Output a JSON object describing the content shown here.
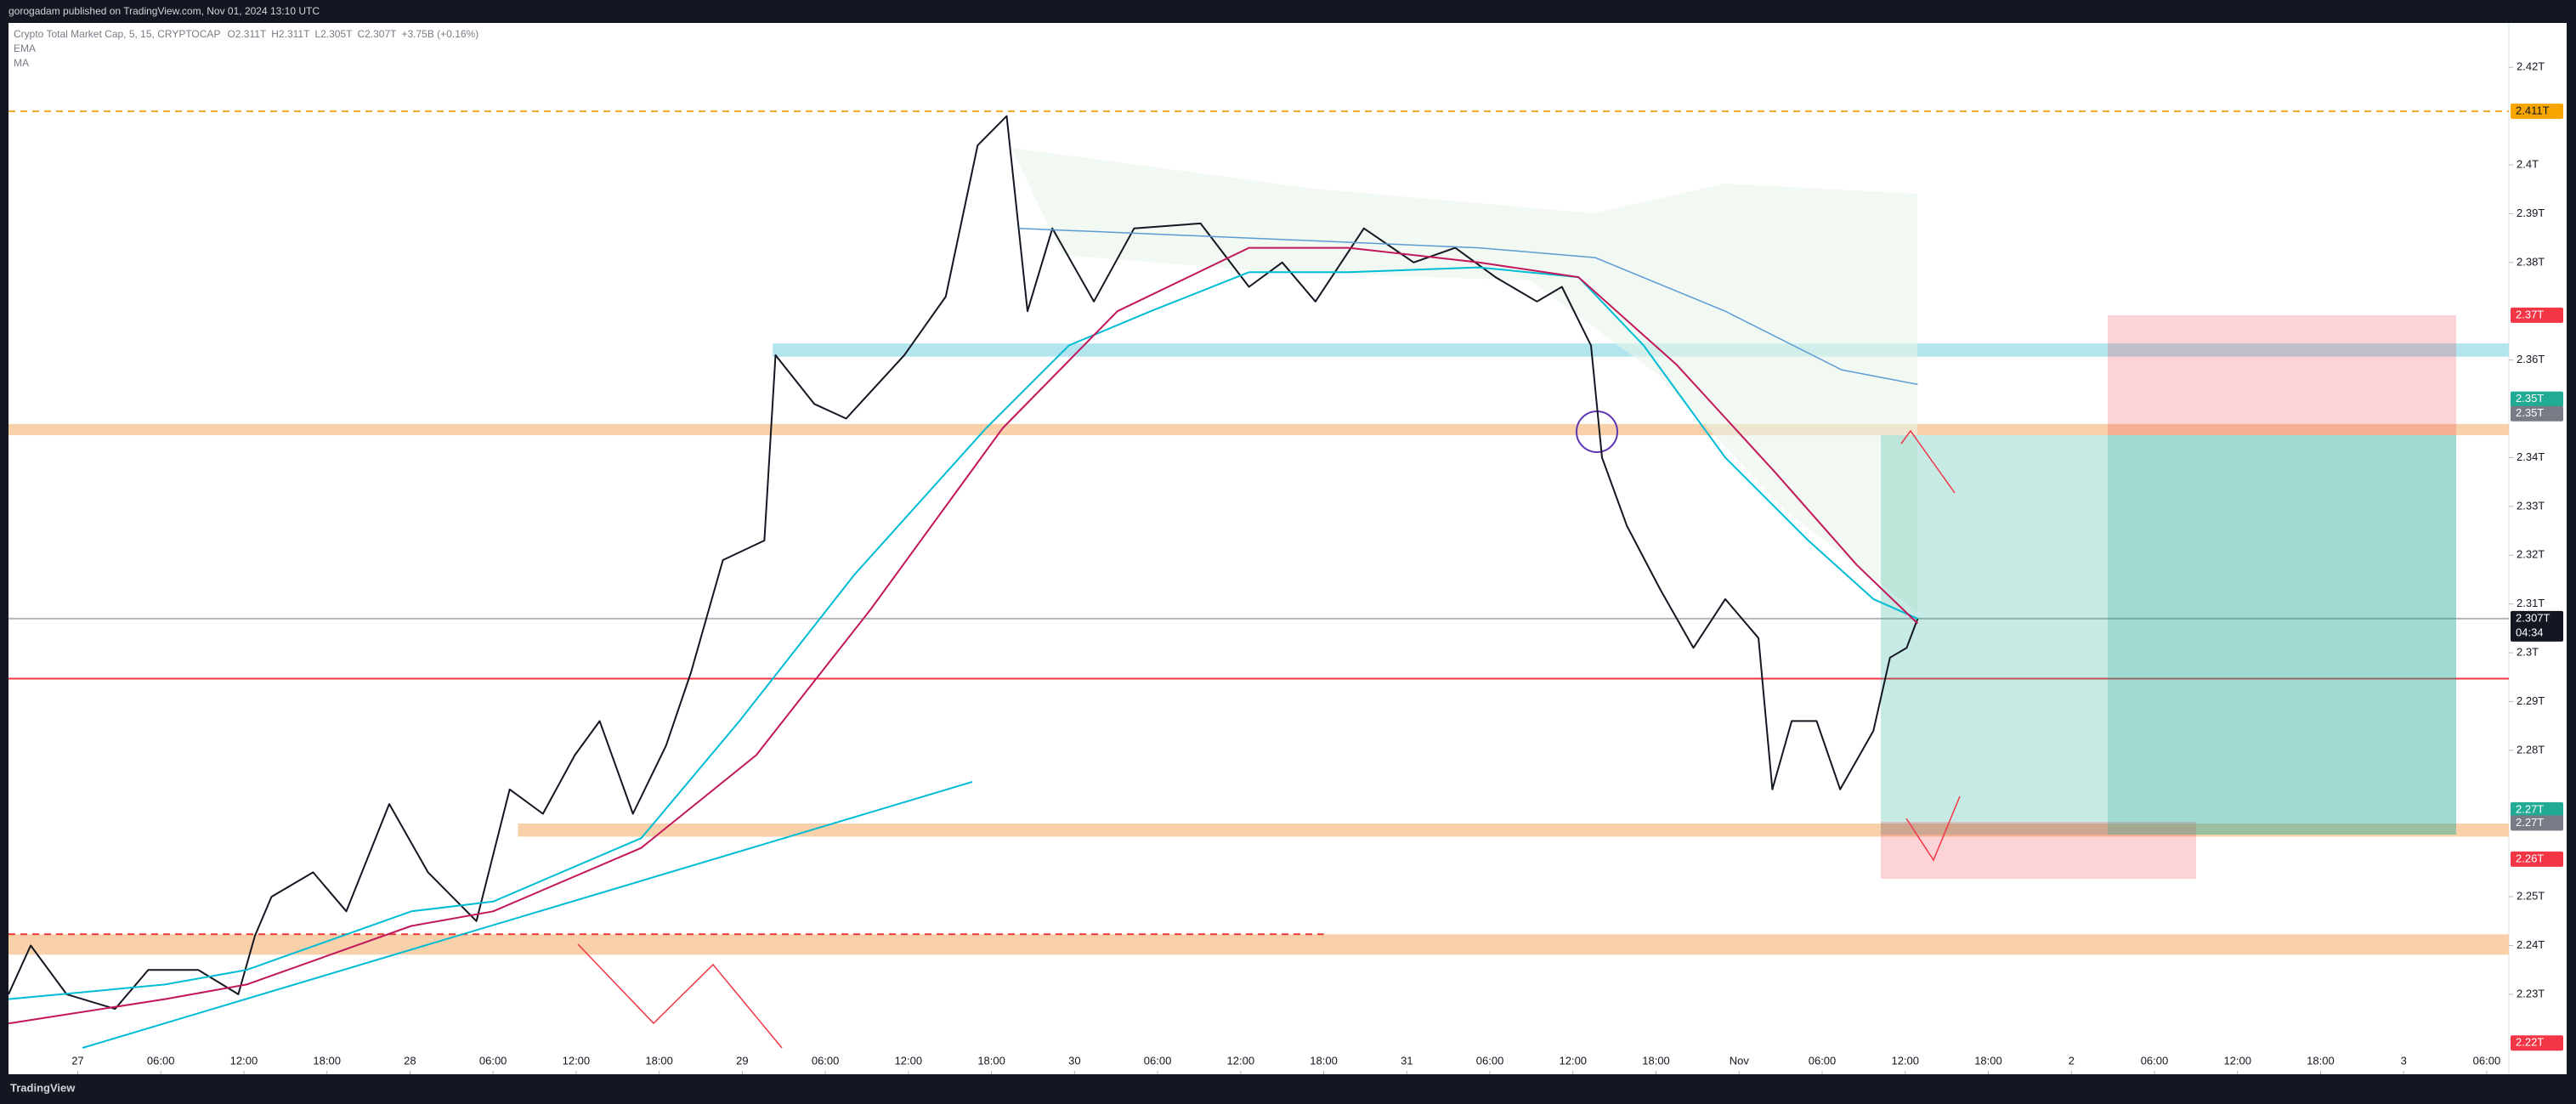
{
  "header": {
    "publisher": "gorogadam published on TradingView.com, Nov 01, 2024 13:10 UTC",
    "footer": "TradingView"
  },
  "chart_data": {
    "type": "line",
    "symbol_info": ", 5, 15, CRYPTOCAP",
    "ohlc_text": [
      "O2.311T",
      "H2.311T",
      "L2.305T",
      "C2.307T",
      "+3.75B (+0.16%)"
    ],
    "xlim": [
      -5.0,
      175.6
    ],
    "ylim": [
      2.2136,
      2.4291
    ],
    "grid": false,
    "xticks": [
      {
        "value": 0,
        "label": "27"
      },
      {
        "value": 6,
        "label": "06:00"
      },
      {
        "value": 12,
        "label": "12:00"
      },
      {
        "value": 18,
        "label": "18:00"
      },
      {
        "value": 24,
        "label": "28"
      },
      {
        "value": 30,
        "label": "06:00"
      },
      {
        "value": 36,
        "label": "12:00"
      },
      {
        "value": 42,
        "label": "18:00"
      },
      {
        "value": 48,
        "label": "29"
      },
      {
        "value": 54,
        "label": "06:00"
      },
      {
        "value": 60,
        "label": "12:00"
      },
      {
        "value": 66,
        "label": "18:00"
      },
      {
        "value": 72,
        "label": "30"
      },
      {
        "value": 78,
        "label": "06:00"
      },
      {
        "value": 84,
        "label": "12:00"
      },
      {
        "value": 90,
        "label": "18:00"
      },
      {
        "value": 96,
        "label": "31"
      },
      {
        "value": 102,
        "label": "06:00"
      },
      {
        "value": 108,
        "label": "12:00"
      },
      {
        "value": 114,
        "label": "18:00"
      },
      {
        "value": 120,
        "label": "Nov"
      },
      {
        "value": 126,
        "label": "06:00"
      },
      {
        "value": 132,
        "label": "12:00"
      },
      {
        "value": 138,
        "label": "18:00"
      },
      {
        "value": 144,
        "label": "2"
      },
      {
        "value": 150,
        "label": "06:00"
      },
      {
        "value": 156,
        "label": "12:00"
      },
      {
        "value": 162,
        "label": "18:00"
      },
      {
        "value": 168,
        "label": "3"
      },
      {
        "value": 174,
        "label": "06:00"
      }
    ],
    "yticks": [
      {
        "value": 2.42,
        "label": "2.42T"
      },
      {
        "value": 2.4,
        "label": "2.4T"
      },
      {
        "value": 2.39,
        "label": "2.39T"
      },
      {
        "value": 2.38,
        "label": "2.38T"
      },
      {
        "value": 2.36,
        "label": "2.36T"
      },
      {
        "value": 2.34,
        "label": "2.34T"
      },
      {
        "value": 2.33,
        "label": "2.33T"
      },
      {
        "value": 2.32,
        "label": "2.32T"
      },
      {
        "value": 2.31,
        "label": "2.31T"
      },
      {
        "value": 2.3,
        "label": "2.3T"
      },
      {
        "value": 2.29,
        "label": "2.29T"
      },
      {
        "value": 2.28,
        "label": "2.28T"
      },
      {
        "value": 2.25,
        "label": "2.25T"
      },
      {
        "value": 2.24,
        "label": "2.24T"
      },
      {
        "value": 2.23,
        "label": "2.23T"
      }
    ],
    "series": [
      {
        "name": "Crypto Total Market Cap",
        "color": "#131722",
        "width": 2,
        "x": [
          -5.0,
          -3.4,
          -0.8,
          2.7,
          5.1,
          8.7,
          11.6,
          12.8,
          14.0,
          17.0,
          19.4,
          22.5,
          25.3,
          28.8,
          31.2,
          33.6,
          35.9,
          37.7,
          40.1,
          42.5,
          44.3,
          46.6,
          49.6,
          50.4,
          53.2,
          55.5,
          59.7,
          62.7,
          65.0,
          67.1,
          68.6,
          70.4,
          73.4,
          76.3,
          81.1,
          84.6,
          87.0,
          89.4,
          92.9,
          96.5,
          99.5,
          102.4,
          105.4,
          107.2,
          109.3,
          110.1,
          111.9,
          114.3,
          116.7,
          119.0,
          121.4,
          122.4,
          123.8,
          125.6,
          127.3,
          129.7,
          130.9,
          132.1,
          132.9
        ],
        "values": [
          2.23,
          2.24,
          2.23,
          2.227,
          2.235,
          2.235,
          2.23,
          2.242,
          2.25,
          2.255,
          2.247,
          2.269,
          2.255,
          2.245,
          2.272,
          2.267,
          2.279,
          2.286,
          2.267,
          2.281,
          2.296,
          2.319,
          2.323,
          2.361,
          2.351,
          2.348,
          2.361,
          2.373,
          2.404,
          2.41,
          2.37,
          2.387,
          2.372,
          2.387,
          2.388,
          2.375,
          2.38,
          2.372,
          2.387,
          2.38,
          2.383,
          2.377,
          2.372,
          2.375,
          2.363,
          2.34,
          2.326,
          2.313,
          2.301,
          2.311,
          2.303,
          2.272,
          2.286,
          2.286,
          2.272,
          2.284,
          2.299,
          2.301,
          2.307
        ]
      },
      {
        "name": "EMA",
        "color": "#00bcd4",
        "width": 2,
        "x": [
          -5.0,
          6.3,
          12.2,
          24.1,
          30.0,
          40.7,
          47.8,
          56.1,
          65.6,
          71.6,
          77.5,
          84.6,
          91.8,
          101.2,
          108.4,
          113.1,
          119.0,
          125.0,
          129.7,
          132.9
        ],
        "values": [
          2.229,
          2.232,
          2.235,
          2.247,
          2.249,
          2.262,
          2.286,
          2.316,
          2.346,
          2.363,
          2.37,
          2.378,
          2.378,
          2.379,
          2.377,
          2.363,
          2.34,
          2.323,
          2.311,
          2.307
        ]
      },
      {
        "name": "MA",
        "color": "#c2185b",
        "width": 2,
        "x": [
          -5.0,
          6.3,
          12.2,
          24.1,
          30.0,
          40.7,
          49.0,
          57.3,
          66.8,
          75.1,
          84.6,
          91.8,
          101.2,
          108.4,
          115.5,
          122.6,
          128.5,
          132.9
        ],
        "values": [
          2.224,
          2.229,
          2.232,
          2.244,
          2.247,
          2.26,
          2.279,
          2.309,
          2.346,
          2.37,
          2.383,
          2.383,
          2.38,
          2.377,
          2.359,
          2.337,
          2.318,
          2.306
        ]
      },
      {
        "color": "#5b9bd5",
        "width": 1.5,
        "x": [
          68.0,
          84.6,
          101.2,
          109.6,
          119.0,
          127.4,
          132.9
        ],
        "values": [
          2.387,
          2.385,
          2.383,
          2.381,
          2.37,
          2.358,
          2.355
        ]
      }
    ],
    "levels": [
      {
        "value": 2.411,
        "color": "#f5a623",
        "dashed": true,
        "from": -5.0
      },
      {
        "value": 2.2947,
        "color": "#f23645",
        "dashed": false,
        "from": -5.0
      },
      {
        "value": 2.307,
        "color": "#b2b5be",
        "dashed": false,
        "from": -5.0
      },
      {
        "value": 2.2423,
        "color": "#e53935",
        "dashed": true,
        "from": -5.0,
        "to": 90.0
      }
    ],
    "zones": [
      {
        "from_value": 2.3446,
        "to_value": 2.3469,
        "x_from": -5.0,
        "color": "#f7c89b"
      },
      {
        "from_value": 2.3607,
        "to_value": 2.3634,
        "x_from": 50.2,
        "color": "#a5e0ea"
      },
      {
        "from_value": 2.2623,
        "to_value": 2.265,
        "x_from": 31.8,
        "color": "#f7c89b"
      },
      {
        "from_value": 2.2381,
        "to_value": 2.2423,
        "x_from": -5.0,
        "color": "#f7c89b"
      }
    ],
    "price_tags": [
      {
        "value": 2.411,
        "label": "2.411T",
        "color": "#f7a600",
        "text_color": "#131722"
      },
      {
        "value": 2.3692,
        "label": "2.37T",
        "color": "#f23645",
        "text_color": "#ffffff"
      },
      {
        "value": 2.352,
        "label": "2.35T",
        "color": "#22ab94",
        "text_color": "#ffffff"
      },
      {
        "value": 2.349,
        "label": "2.35T",
        "color": "#787b86",
        "text_color": "#ffffff"
      },
      {
        "value": 2.2678,
        "label": "2.27T",
        "color": "#22ab94",
        "text_color": "#ffffff"
      },
      {
        "value": 2.2651,
        "label": "2.27T",
        "color": "#787b86",
        "text_color": "#ffffff"
      },
      {
        "value": 2.2577,
        "label": "2.26T",
        "color": "#f23645",
        "text_color": "#ffffff"
      },
      {
        "value": 2.22,
        "label": "2.22T",
        "color": "#f23645",
        "text_color": "#ffffff"
      }
    ],
    "current_price": {
      "value": 2.307,
      "label": "2.307T",
      "countdown": "04:34"
    }
  }
}
